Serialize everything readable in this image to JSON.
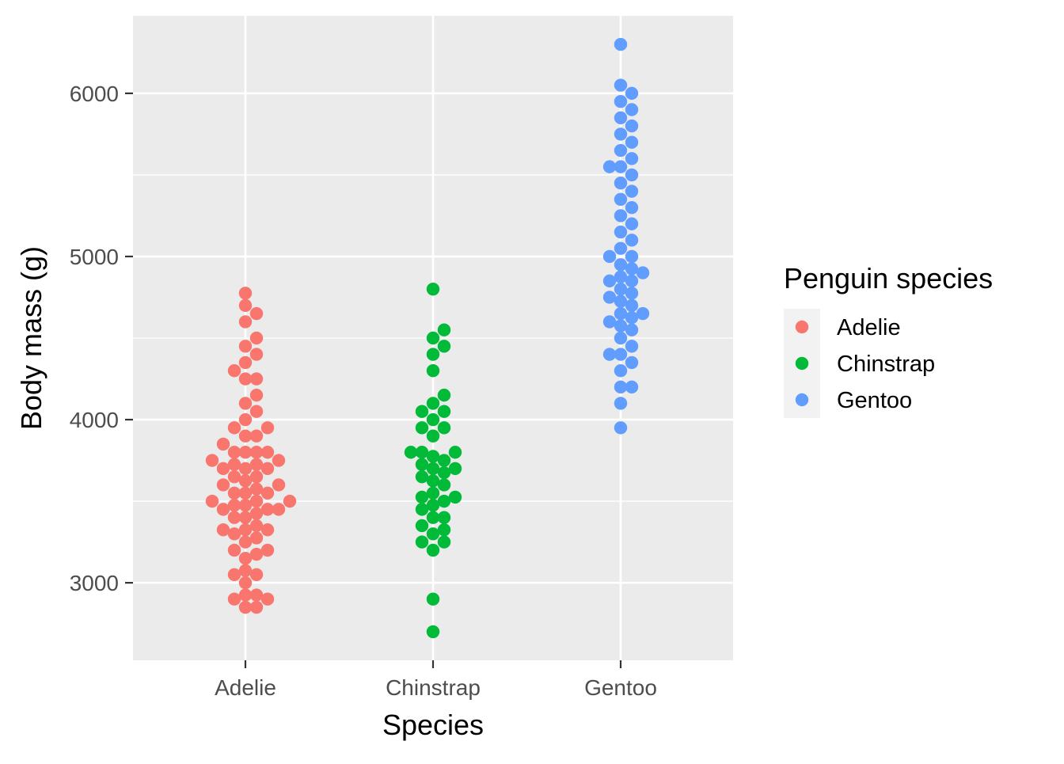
{
  "chart_data": {
    "type": "scatter",
    "title": "",
    "xlabel": "Species",
    "ylabel": "Body mass (g)",
    "categories": [
      "Adelie",
      "Chinstrap",
      "Gentoo"
    ],
    "ylim": [
      2525,
      6475
    ],
    "y_ticks": [
      3000,
      4000,
      5000,
      6000
    ],
    "grid": true,
    "legend": {
      "title": "Penguin species",
      "position": "right"
    },
    "series": [
      {
        "name": "Adelie",
        "color": "#F8766D",
        "values": [
          2850,
          2850,
          2900,
          2900,
          2925,
          2925,
          3000,
          3050,
          3050,
          3075,
          3150,
          3175,
          3200,
          3200,
          3250,
          3275,
          3300,
          3325,
          3325,
          3325,
          3350,
          3400,
          3400,
          3425,
          3450,
          3450,
          3450,
          3475,
          3475,
          3500,
          3500,
          3500,
          3550,
          3550,
          3550,
          3575,
          3600,
          3600,
          3625,
          3650,
          3650,
          3700,
          3700,
          3700,
          3725,
          3725,
          3750,
          3750,
          3800,
          3800,
          3800,
          3800,
          3850,
          3900,
          3900,
          3950,
          3950,
          4000,
          4050,
          4100,
          4150,
          4250,
          4250,
          4300,
          4350,
          4400,
          4450,
          4500,
          4600,
          4650,
          4700,
          4775
        ]
      },
      {
        "name": "Chinstrap",
        "color": "#00BA38",
        "values": [
          2700,
          2900,
          3200,
          3250,
          3250,
          3300,
          3325,
          3350,
          3400,
          3400,
          3450,
          3475,
          3500,
          3525,
          3525,
          3550,
          3600,
          3625,
          3650,
          3675,
          3700,
          3700,
          3725,
          3750,
          3775,
          3800,
          3800,
          3800,
          3900,
          3950,
          3950,
          4000,
          4050,
          4050,
          4100,
          4150,
          4300,
          4400,
          4450,
          4500,
          4550,
          4800
        ]
      },
      {
        "name": "Gentoo",
        "color": "#619CFF",
        "values": [
          3950,
          4100,
          4200,
          4200,
          4300,
          4350,
          4400,
          4400,
          4450,
          4500,
          4550,
          4575,
          4600,
          4625,
          4650,
          4650,
          4700,
          4725,
          4750,
          4775,
          4800,
          4850,
          4850,
          4875,
          4900,
          4925,
          4950,
          5000,
          5000,
          5050,
          5100,
          5150,
          5200,
          5250,
          5300,
          5350,
          5400,
          5450,
          5500,
          5550,
          5550,
          5600,
          5650,
          5700,
          5750,
          5800,
          5850,
          5900,
          5950,
          6000,
          6050,
          6300
        ]
      }
    ]
  }
}
